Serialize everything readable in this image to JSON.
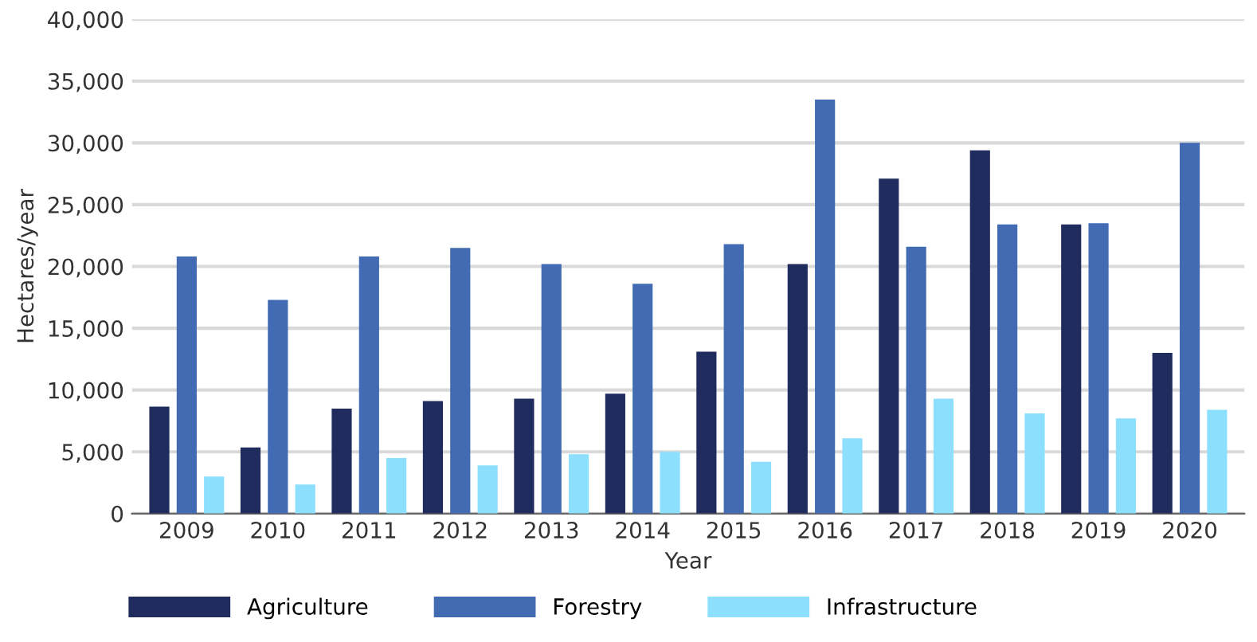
{
  "chart_data": {
    "type": "bar",
    "xlabel": "Year",
    "ylabel": "Hectares/year",
    "categories": [
      "2009",
      "2010",
      "2011",
      "2012",
      "2013",
      "2014",
      "2015",
      "2016",
      "2017",
      "2018",
      "2019",
      "2020"
    ],
    "series": [
      {
        "name": "Agriculture",
        "color": "#202c5e",
        "values": [
          8650,
          5350,
          8500,
          9100,
          9300,
          9700,
          13100,
          20200,
          27100,
          29400,
          23400,
          13000
        ]
      },
      {
        "name": "Forestry",
        "color": "#426bb3",
        "values": [
          20800,
          17300,
          20800,
          21500,
          20200,
          18600,
          21800,
          33500,
          21600,
          23400,
          23500,
          30000
        ]
      },
      {
        "name": "Infrastructure",
        "color": "#8ce0fe",
        "values": [
          3000,
          2350,
          4500,
          3900,
          4800,
          5000,
          4200,
          6100,
          9300,
          8100,
          7700,
          8400
        ]
      }
    ],
    "ylim": [
      0,
      40000
    ],
    "yticks": [
      {
        "value": 0,
        "label": "0"
      },
      {
        "value": 5000,
        "label": "5,000"
      },
      {
        "value": 10000,
        "label": "10,000"
      },
      {
        "value": 15000,
        "label": "15,000"
      },
      {
        "value": 20000,
        "label": "20,000"
      },
      {
        "value": 25000,
        "label": "25,000"
      },
      {
        "value": 30000,
        "label": "30,000"
      },
      {
        "value": 35000,
        "label": "35,000"
      },
      {
        "value": 40000,
        "label": "40,000"
      }
    ],
    "grid": "y",
    "legend": "bottom left"
  }
}
